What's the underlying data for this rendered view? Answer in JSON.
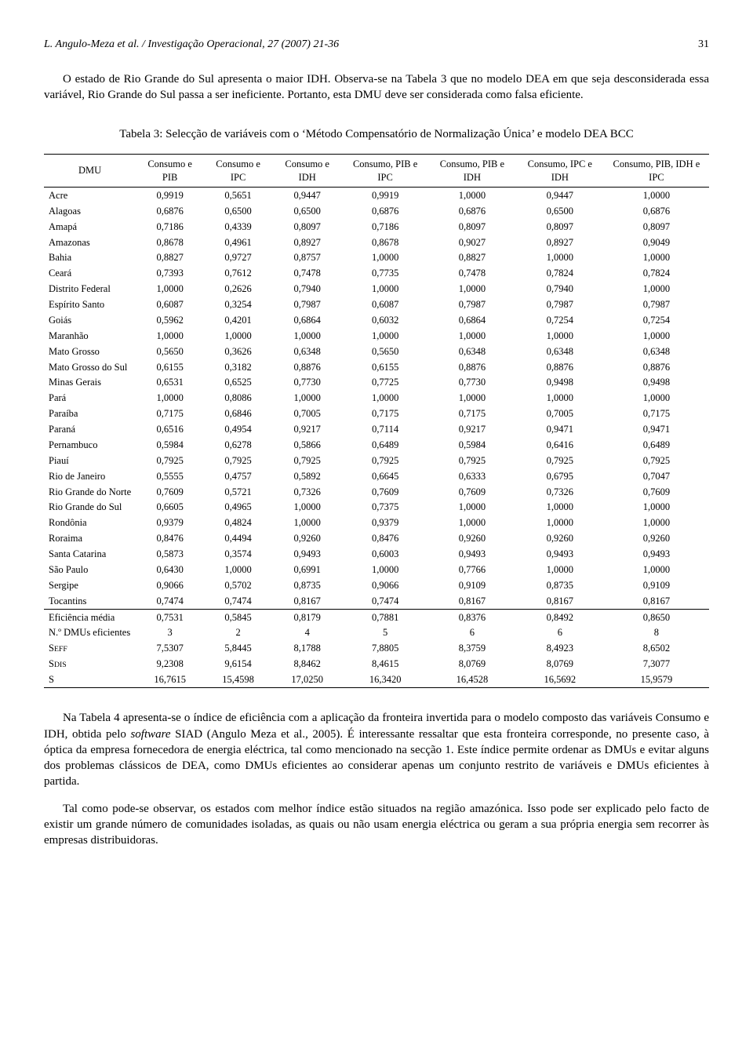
{
  "header": {
    "running": "L. Angulo-Meza et al. / Investigação Operacional, 27 (2007) 21-36",
    "pagenum": "31"
  },
  "para1": "O estado de Rio Grande do Sul apresenta o maior IDH. Observa-se na Tabela 3 que no modelo DEA em que seja desconsiderada essa variável, Rio Grande do Sul passa a ser ineficiente. Portanto, esta DMU deve ser considerada como falsa eficiente.",
  "table": {
    "caption": "Tabela 3: Selecção de variáveis com o ‘Método Compensatório de Normalização Única’ e modelo DEA BCC",
    "columns": [
      "DMU",
      "Consumo e PIB",
      "Consumo e IPC",
      "Consumo e IDH",
      "Consumo, PIB e IPC",
      "Consumo, PIB e IDH",
      "Consumo, IPC e IDH",
      "Consumo, PIB, IDH e IPC"
    ],
    "rows": [
      [
        "Acre",
        "0,9919",
        "0,5651",
        "0,9447",
        "0,9919",
        "1,0000",
        "0,9447",
        "1,0000"
      ],
      [
        "Alagoas",
        "0,6876",
        "0,6500",
        "0,6500",
        "0,6876",
        "0,6876",
        "0,6500",
        "0,6876"
      ],
      [
        "Amapá",
        "0,7186",
        "0,4339",
        "0,8097",
        "0,7186",
        "0,8097",
        "0,8097",
        "0,8097"
      ],
      [
        "Amazonas",
        "0,8678",
        "0,4961",
        "0,8927",
        "0,8678",
        "0,9027",
        "0,8927",
        "0,9049"
      ],
      [
        "Bahia",
        "0,8827",
        "0,9727",
        "0,8757",
        "1,0000",
        "0,8827",
        "1,0000",
        "1,0000"
      ],
      [
        "Ceará",
        "0,7393",
        "0,7612",
        "0,7478",
        "0,7735",
        "0,7478",
        "0,7824",
        "0,7824"
      ],
      [
        "Distrito Federal",
        "1,0000",
        "0,2626",
        "0,7940",
        "1,0000",
        "1,0000",
        "0,7940",
        "1,0000"
      ],
      [
        "Espírito Santo",
        "0,6087",
        "0,3254",
        "0,7987",
        "0,6087",
        "0,7987",
        "0,7987",
        "0,7987"
      ],
      [
        "Goiás",
        "0,5962",
        "0,4201",
        "0,6864",
        "0,6032",
        "0,6864",
        "0,7254",
        "0,7254"
      ],
      [
        "Maranhão",
        "1,0000",
        "1,0000",
        "1,0000",
        "1,0000",
        "1,0000",
        "1,0000",
        "1,0000"
      ],
      [
        "Mato Grosso",
        "0,5650",
        "0,3626",
        "0,6348",
        "0,5650",
        "0,6348",
        "0,6348",
        "0,6348"
      ],
      [
        "Mato Grosso do Sul",
        "0,6155",
        "0,3182",
        "0,8876",
        "0,6155",
        "0,8876",
        "0,8876",
        "0,8876"
      ],
      [
        "Minas Gerais",
        "0,6531",
        "0,6525",
        "0,7730",
        "0,7725",
        "0,7730",
        "0,9498",
        "0,9498"
      ],
      [
        "Pará",
        "1,0000",
        "0,8086",
        "1,0000",
        "1,0000",
        "1,0000",
        "1,0000",
        "1,0000"
      ],
      [
        "Paraíba",
        "0,7175",
        "0,6846",
        "0,7005",
        "0,7175",
        "0,7175",
        "0,7005",
        "0,7175"
      ],
      [
        "Paraná",
        "0,6516",
        "0,4954",
        "0,9217",
        "0,7114",
        "0,9217",
        "0,9471",
        "0,9471"
      ],
      [
        "Pernambuco",
        "0,5984",
        "0,6278",
        "0,5866",
        "0,6489",
        "0,5984",
        "0,6416",
        "0,6489"
      ],
      [
        "Piauí",
        "0,7925",
        "0,7925",
        "0,7925",
        "0,7925",
        "0,7925",
        "0,7925",
        "0,7925"
      ],
      [
        "Rio de Janeiro",
        "0,5555",
        "0,4757",
        "0,5892",
        "0,6645",
        "0,6333",
        "0,6795",
        "0,7047"
      ],
      [
        "Rio Grande do Norte",
        "0,7609",
        "0,5721",
        "0,7326",
        "0,7609",
        "0,7609",
        "0,7326",
        "0,7609"
      ],
      [
        "Rio Grande do Sul",
        "0,6605",
        "0,4965",
        "1,0000",
        "0,7375",
        "1,0000",
        "1,0000",
        "1,0000"
      ],
      [
        "Rondônia",
        "0,9379",
        "0,4824",
        "1,0000",
        "0,9379",
        "1,0000",
        "1,0000",
        "1,0000"
      ],
      [
        "Roraima",
        "0,8476",
        "0,4494",
        "0,9260",
        "0,8476",
        "0,9260",
        "0,9260",
        "0,9260"
      ],
      [
        "Santa Catarina",
        "0,5873",
        "0,3574",
        "0,9493",
        "0,6003",
        "0,9493",
        "0,9493",
        "0,9493"
      ],
      [
        "São Paulo",
        "0,6430",
        "1,0000",
        "0,6991",
        "1,0000",
        "0,7766",
        "1,0000",
        "1,0000"
      ],
      [
        "Sergipe",
        "0,9066",
        "0,5702",
        "0,8735",
        "0,9066",
        "0,9109",
        "0,8735",
        "0,9109"
      ],
      [
        "Tocantins",
        "0,7474",
        "0,7474",
        "0,8167",
        "0,7474",
        "0,8167",
        "0,8167",
        "0,8167"
      ]
    ],
    "summary": [
      [
        "Eficiência média",
        "0,7531",
        "0,5845",
        "0,8179",
        "0,7881",
        "0,8376",
        "0,8492",
        "0,8650"
      ],
      [
        "N.º DMUs eficientes",
        "3",
        "2",
        "4",
        "5",
        "6",
        "6",
        "8"
      ],
      [
        "SEFF",
        "7,5307",
        "5,8445",
        "8,1788",
        "7,8805",
        "8,3759",
        "8,4923",
        "8,6502"
      ],
      [
        "SDIS",
        "9,2308",
        "9,6154",
        "8,8462",
        "8,4615",
        "8,0769",
        "8,0769",
        "7,3077"
      ],
      [
        "S",
        "16,7615",
        "15,4598",
        "17,0250",
        "16,3420",
        "16,4528",
        "16,5692",
        "15,9579"
      ]
    ]
  },
  "para2_a": "Na Tabela 4 apresenta-se o índice de eficiência com a aplicação da fronteira invertida para o modelo composto das variáveis Consumo e IDH, obtida pelo ",
  "para2_i": "software",
  "para2_b": " SIAD (Angulo Meza et al., 2005). É interessante ressaltar que esta fronteira corresponde, no presente caso, à óptica da empresa fornecedora de energia eléctrica, tal como mencionado na secção 1. Este índice permite ordenar as DMUs e evitar alguns dos problemas clássicos de DEA, como DMUs eficientes ao considerar apenas um conjunto restrito de variáveis e DMUs eficientes à partida.",
  "para3": "Tal como pode-se observar, os estados com melhor índice estão situados na região amazónica. Isso pode ser explicado pelo facto de existir um grande número de comunidades isoladas, as quais ou não usam energia eléctrica ou geram a sua própria energia sem recorrer às empresas distribuidoras."
}
